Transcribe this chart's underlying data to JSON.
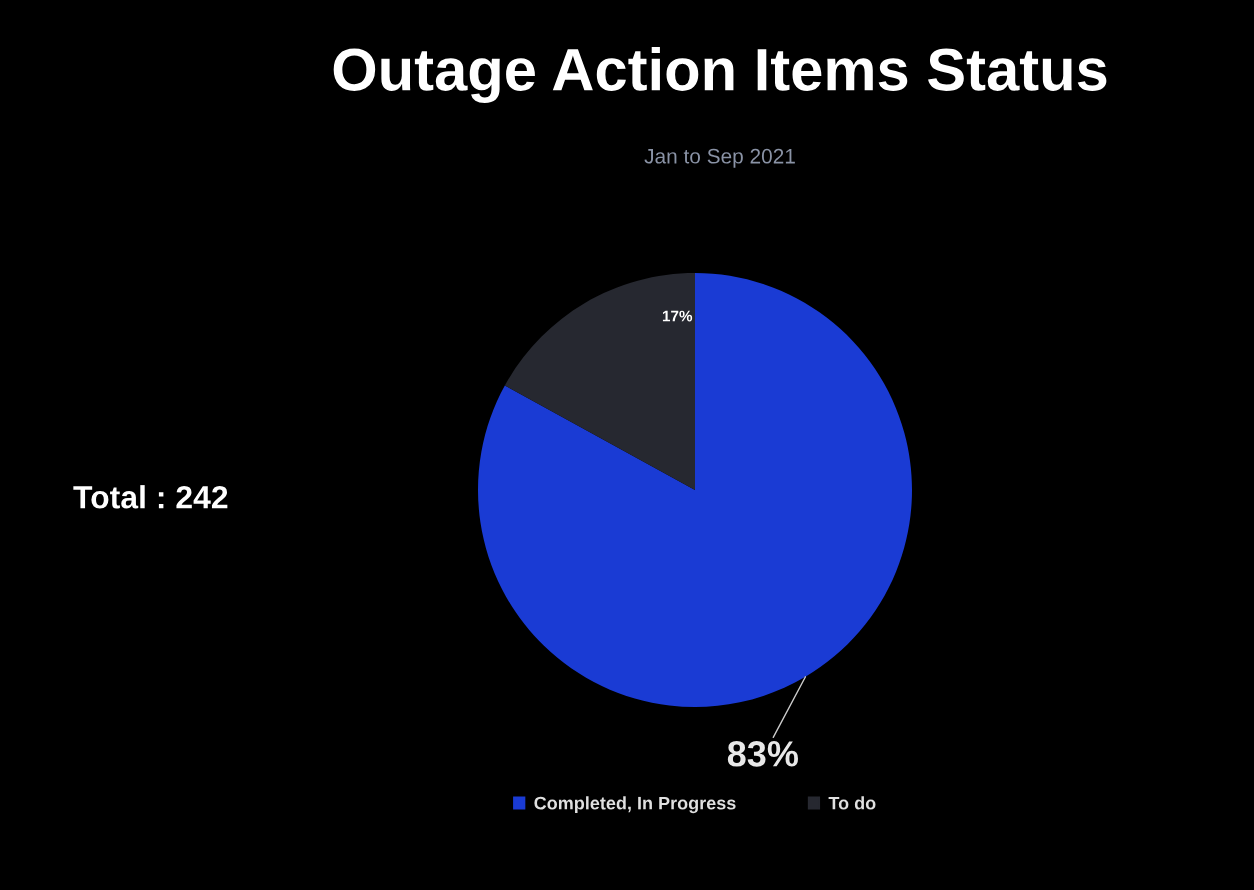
{
  "chart_data": {
    "type": "pie",
    "title": "Outage Action Items Status",
    "subtitle": "Jan to Sep 2021",
    "categories": [
      "Completed, In Progress",
      "To do"
    ],
    "values": [
      83,
      17
    ],
    "colors": [
      "#1a3bd4",
      "#262830"
    ],
    "value_labels": [
      "83%",
      "17%"
    ],
    "annotations": [
      "Total : 242"
    ],
    "legend": "bottom"
  }
}
